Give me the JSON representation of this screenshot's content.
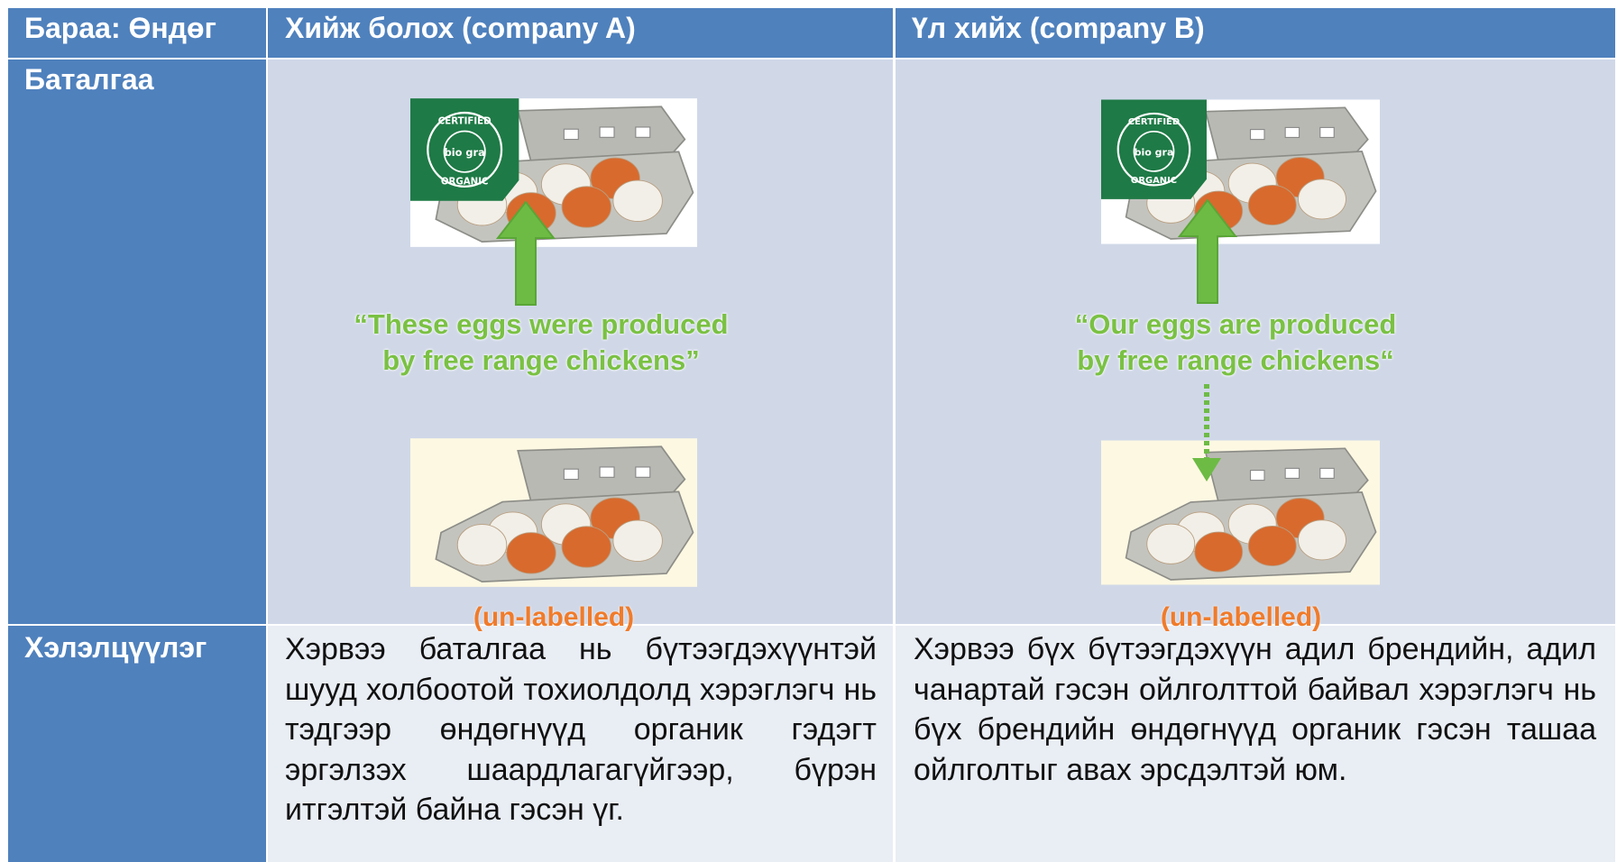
{
  "table": {
    "header": [
      "Бараа: Өндөг",
      "Хийж болох (company A)",
      "Үл хийх (company B)"
    ],
    "logo": [
      "CERTIFIED",
      "bio gra",
      "ORGANIC"
    ],
    "rows": [
      {
        "label": "Баталгаа",
        "cells": [
          {
            "claim": [
              "“These eggs were produced",
              "by free range chickens”"
            ],
            "note": "(un-labelled)"
          },
          {
            "claim": [
              "“Our eggs are produced",
              "by free range chickens“"
            ],
            "note": "(un-labelled)"
          }
        ]
      },
      {
        "label": "Хэлэлцүүлэг",
        "cells": [
          "Хэрвээ баталгаа нь бүтээгдэхүүнтэй шууд холбоотой тохиолдолд хэрэглэгч нь тэдгээр өндөгнүүд органик гэдэгт эргэлзэх шаардлагагүйгээр, бүрэн итгэлтэй байна гэсэн үг.",
          "Хэрвээ бүх бүтээгдэхүүн адил брендийн, адил чанартай гэсэн ойлголттой байвал хэрэглэгч нь бүх брендийн өндөгнүүд органик гэсэн ташаа ойлголтыг авах эрсдэлтэй юм."
        ]
      }
    ]
  }
}
